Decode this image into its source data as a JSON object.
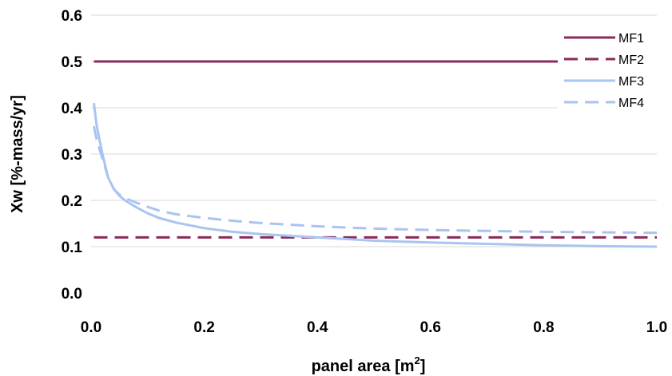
{
  "chart_data": {
    "type": "line",
    "xlabel": "panel area [m",
    "xlabel_superscript": "2",
    "xlabel_suffix": "]",
    "ylabel": "Xw [%-mass/yr]",
    "xlim": [
      0.0,
      1.0
    ],
    "ylim": [
      0.0,
      0.6
    ],
    "x_ticks": [
      "0.0",
      "0.2",
      "0.4",
      "0.6",
      "0.8",
      "1.0"
    ],
    "y_ticks": [
      "0.0",
      "0.1",
      "0.2",
      "0.3",
      "0.4",
      "0.5",
      "0.6"
    ],
    "grid": "horizontal",
    "legend_position": "top-right",
    "series": [
      {
        "name": "MF1",
        "color": "#8b2a5b",
        "dash": "solid",
        "points": [
          [
            0.005,
            0.5
          ],
          [
            1.0,
            0.5
          ]
        ]
      },
      {
        "name": "MF2",
        "color": "#8b2a5b",
        "dash": "dashed",
        "points": [
          [
            0.005,
            0.12
          ],
          [
            1.0,
            0.12
          ]
        ]
      },
      {
        "name": "MF3",
        "color": "#a9c4f0",
        "dash": "solid",
        "points": [
          [
            0.005,
            0.41
          ],
          [
            0.01,
            0.36
          ],
          [
            0.02,
            0.3
          ],
          [
            0.03,
            0.25
          ],
          [
            0.04,
            0.225
          ],
          [
            0.05,
            0.21
          ],
          [
            0.06,
            0.2
          ],
          [
            0.08,
            0.185
          ],
          [
            0.1,
            0.172
          ],
          [
            0.12,
            0.162
          ],
          [
            0.15,
            0.152
          ],
          [
            0.2,
            0.14
          ],
          [
            0.25,
            0.132
          ],
          [
            0.3,
            0.127
          ],
          [
            0.4,
            0.12
          ],
          [
            0.5,
            0.113
          ],
          [
            0.6,
            0.109
          ],
          [
            0.7,
            0.106
          ],
          [
            0.8,
            0.103
          ],
          [
            0.9,
            0.101
          ],
          [
            1.0,
            0.1
          ]
        ]
      },
      {
        "name": "MF4",
        "color": "#a9c4f0",
        "dash": "dashed",
        "points": [
          [
            0.005,
            0.36
          ],
          [
            0.01,
            0.33
          ],
          [
            0.02,
            0.29
          ],
          [
            0.03,
            0.25
          ],
          [
            0.04,
            0.225
          ],
          [
            0.05,
            0.212
          ],
          [
            0.06,
            0.205
          ],
          [
            0.08,
            0.195
          ],
          [
            0.1,
            0.186
          ],
          [
            0.12,
            0.178
          ],
          [
            0.15,
            0.17
          ],
          [
            0.2,
            0.162
          ],
          [
            0.25,
            0.156
          ],
          [
            0.3,
            0.151
          ],
          [
            0.4,
            0.144
          ],
          [
            0.5,
            0.139
          ],
          [
            0.6,
            0.136
          ],
          [
            0.7,
            0.134
          ],
          [
            0.8,
            0.132
          ],
          [
            0.9,
            0.131
          ],
          [
            1.0,
            0.13
          ]
        ]
      }
    ]
  }
}
